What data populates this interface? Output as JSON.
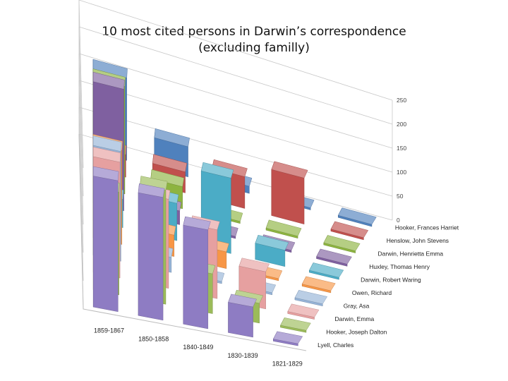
{
  "chart_data": {
    "type": "bar",
    "variant": "3d-column",
    "title": [
      "10 most cited persons in Darwin’s correspondence",
      "(excluding familly)"
    ],
    "categories": [
      "1859-1867",
      "1850-1858",
      "1840-1849",
      "1830-1839",
      "1821-1829"
    ],
    "zlim": [
      0,
      250
    ],
    "zticks": [
      0,
      50,
      100,
      150,
      200,
      250
    ],
    "grid": true,
    "series": [
      {
        "name": "Lyell, Charles",
        "color": "#8e7cc3",
        "values": [
          235,
          225,
          185,
          58,
          2
        ]
      },
      {
        "name": "Hooker, Joseph Dalton",
        "color": "#9bbb59",
        "values": [
          185,
          210,
          75,
          38,
          2
        ]
      },
      {
        "name": "Darwin, Emma",
        "color": "#e6a0a0",
        "values": [
          210,
          165,
          130,
          72,
          2
        ]
      },
      {
        "name": "Gray, Asa",
        "color": "#95b3d7",
        "values": [
          200,
          28,
          4,
          2,
          2
        ]
      },
      {
        "name": "Owen, Richard",
        "color": "#f79646",
        "values": [
          172,
          40,
          32,
          2,
          2
        ]
      },
      {
        "name": "Darwin, Robert Waring",
        "color": "#4bacc6",
        "values": [
          52,
          70,
          145,
          32,
          2
        ]
      },
      {
        "name": "Huxley, Thomas Henry",
        "color": "#7f60a0",
        "values": [
          225,
          26,
          2,
          2,
          2
        ]
      },
      {
        "name": "Darwin, Henrietta Emma",
        "color": "#8db440",
        "values": [
          200,
          42,
          2,
          2,
          2
        ]
      },
      {
        "name": "Henslow, John Stevens",
        "color": "#c0504d",
        "values": [
          42,
          40,
          62,
          92,
          2
        ]
      },
      {
        "name": "Hooker, Frances Harriet",
        "color": "#4f81bd",
        "values": [
          155,
          58,
          14,
          2,
          2
        ]
      }
    ]
  }
}
